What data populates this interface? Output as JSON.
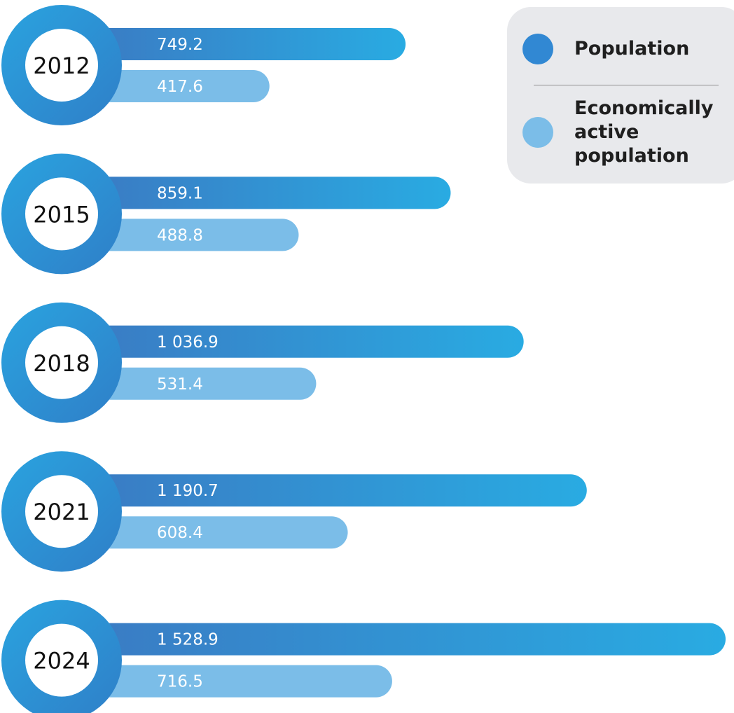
{
  "chart_data": {
    "type": "bar",
    "orientation": "horizontal",
    "categories": [
      "2012",
      "2015",
      "2018",
      "2021",
      "2024"
    ],
    "series": [
      {
        "name": "Population",
        "values": [
          749.2,
          859.1,
          1036.9,
          1190.7,
          1528.9
        ],
        "labels": [
          "749.2",
          "859.1",
          "1 036.9",
          "1 190.7",
          "1 528.9"
        ],
        "color_start": "#3a7cc4",
        "color_end": "#29abe2"
      },
      {
        "name": "Economically active population",
        "values": [
          417.6,
          488.8,
          531.4,
          608.4,
          716.5
        ],
        "labels": [
          "417.6",
          "488.8",
          "531.4",
          "608.4",
          "716.5"
        ],
        "color": "#7bbde8"
      }
    ],
    "xlim": [
      0,
      1528.9
    ],
    "grid": false,
    "legend_position": "top-right",
    "year_marker_colors": [
      "#2f86cf",
      "#2aa3df"
    ]
  },
  "legend": {
    "items": [
      {
        "label": "Population",
        "swatch": "#3188d3"
      },
      {
        "label": "Economically active population",
        "swatch": "#7bbde8"
      }
    ]
  }
}
